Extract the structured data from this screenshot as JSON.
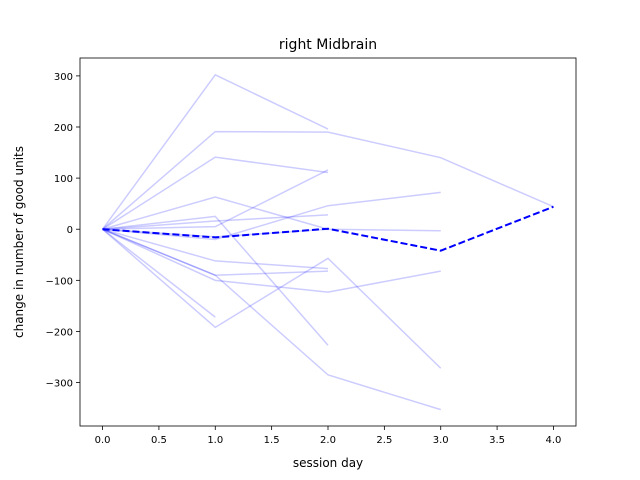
{
  "chart_data": {
    "type": "line",
    "title": "right Midbrain",
    "xlabel": "session day",
    "ylabel": "change in number of good units",
    "xlim": [
      -0.2,
      4.2
    ],
    "ylim": [
      -385,
      335
    ],
    "xticks": [
      0.0,
      0.5,
      1.0,
      1.5,
      2.0,
      2.5,
      3.0,
      3.5,
      4.0
    ],
    "xtick_labels": [
      "0.0",
      "0.5",
      "1.0",
      "1.5",
      "2.0",
      "2.5",
      "3.0",
      "3.5",
      "4.0"
    ],
    "yticks": [
      -300,
      -200,
      -100,
      0,
      100,
      200,
      300
    ],
    "ytick_labels": [
      "−300",
      "−200",
      "−100",
      "0",
      "100",
      "200",
      "300"
    ],
    "grid": false,
    "individual_color": "#0000ff",
    "individual_opacity": 0.2,
    "mean_color": "#0000ff",
    "series": [
      {
        "x": [
          0,
          1,
          2
        ],
        "y": [
          0,
          302,
          196
        ]
      },
      {
        "x": [
          0,
          1,
          2,
          3,
          4
        ],
        "y": [
          0,
          191,
          190,
          140,
          44
        ]
      },
      {
        "x": [
          0,
          1,
          2
        ],
        "y": [
          0,
          141,
          111
        ]
      },
      {
        "x": [
          0,
          1,
          2
        ],
        "y": [
          0,
          63,
          0
        ]
      },
      {
        "x": [
          0,
          1,
          2
        ],
        "y": [
          0,
          5,
          116
        ]
      },
      {
        "x": [
          0,
          1,
          2
        ],
        "y": [
          0,
          16,
          28
        ]
      },
      {
        "x": [
          0,
          1,
          2
        ],
        "y": [
          0,
          25,
          -227
        ]
      },
      {
        "x": [
          0,
          1,
          2,
          3
        ],
        "y": [
          0,
          -20,
          46,
          72
        ]
      },
      {
        "x": [
          0,
          1,
          2,
          3
        ],
        "y": [
          0,
          -15,
          0,
          -3
        ]
      },
      {
        "x": [
          0,
          1,
          2
        ],
        "y": [
          0,
          -62,
          -77
        ]
      },
      {
        "x": [
          0,
          1,
          2
        ],
        "y": [
          0,
          -90,
          -82
        ]
      },
      {
        "x": [
          0,
          1,
          2,
          3
        ],
        "y": [
          0,
          -100,
          -123,
          -82
        ]
      },
      {
        "x": [
          0,
          1
        ],
        "y": [
          0,
          -172
        ]
      },
      {
        "x": [
          0,
          1,
          2,
          3
        ],
        "y": [
          0,
          -192,
          -57,
          -272
        ]
      },
      {
        "x": [
          0,
          1,
          2,
          3
        ],
        "y": [
          0,
          -90,
          -285,
          -353
        ]
      }
    ],
    "mean": {
      "x": [
        0,
        1,
        2,
        3,
        4
      ],
      "y": [
        0,
        -16,
        1,
        -42,
        44
      ]
    }
  }
}
